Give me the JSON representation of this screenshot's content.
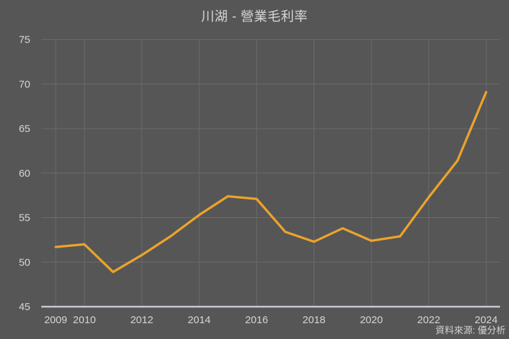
{
  "title": "川湖 - 營業毛利率",
  "source": "資料來源: 優分析",
  "colors": {
    "background": "#565656",
    "line": "#ecA32b",
    "grid": "#6b6b6b",
    "axis": "#c7cbd5",
    "tick_text": "#d6d6d6"
  },
  "chart_data": {
    "type": "line",
    "title": "川湖 - 營業毛利率",
    "x": [
      2009,
      2010,
      2011,
      2012,
      2013,
      2014,
      2015,
      2016,
      2017,
      2018,
      2019,
      2020,
      2021,
      2022,
      2023,
      2024
    ],
    "series": [
      {
        "name": "營業毛利率",
        "values": [
          51.7,
          52.0,
          48.9,
          50.8,
          52.9,
          55.3,
          57.4,
          57.1,
          53.4,
          52.3,
          53.8,
          52.4,
          52.9,
          57.3,
          61.4,
          69.1
        ]
      }
    ],
    "xticks": [
      2009,
      2010,
      2012,
      2014,
      2016,
      2018,
      2020,
      2022,
      2024
    ],
    "yticks": [
      45,
      50,
      55,
      60,
      65,
      70,
      75
    ],
    "xlim": [
      2009,
      2024
    ],
    "ylim": [
      45,
      75
    ],
    "xlabel": "",
    "ylabel": "",
    "grid": true,
    "legend_position": "none",
    "source_note": "資料來源: 優分析"
  }
}
